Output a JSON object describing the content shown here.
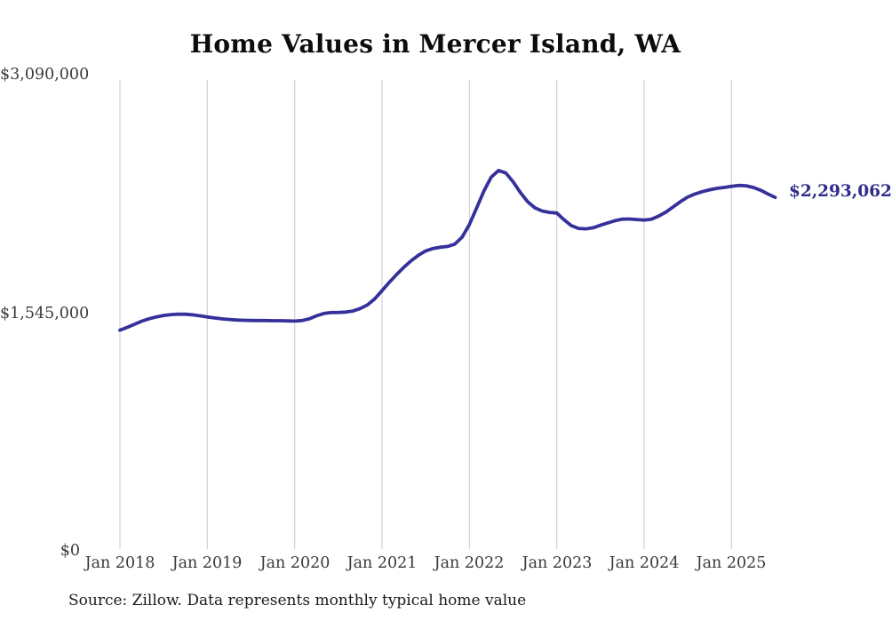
{
  "title": "Home Values in Mercer Island, WA",
  "source_note": "Source: Zillow. Data represents monthly typical home value",
  "end_label": "$2,293,062",
  "colors": {
    "line": "#35319a",
    "grid": "#c9c9c9",
    "title_text": "#0d0d0d",
    "axis_text": "#3a3a3a",
    "end_label_text": "#302c8c"
  },
  "chart_data": {
    "type": "line",
    "title": "Home Values in Mercer Island, WA",
    "series_name": "Monthly typical home value",
    "frequency": "monthly",
    "x_start": "2018-01",
    "x_end": "2025-07",
    "xlabel": "",
    "ylabel": "",
    "ylim": [
      0,
      3090000
    ],
    "grid": "vertical-only",
    "legend": "none",
    "y_tick_labels": [
      "$0",
      "$1,545,000",
      "$3,090,000"
    ],
    "y_tick_values": [
      0,
      1545000,
      3090000
    ],
    "x_tick_labels": [
      "Jan 2018",
      "Jan 2019",
      "Jan 2020",
      "Jan 2021",
      "Jan 2022",
      "Jan 2023",
      "Jan 2024",
      "Jan 2025"
    ],
    "end_value": 2293062,
    "values": [
      1432000,
      1450000,
      1470000,
      1490000,
      1506000,
      1518000,
      1527000,
      1533000,
      1536000,
      1535000,
      1531000,
      1525000,
      1518000,
      1511000,
      1505000,
      1501000,
      1498000,
      1496000,
      1495000,
      1494000,
      1494000,
      1493000,
      1493000,
      1492000,
      1491000,
      1494000,
      1505000,
      1525000,
      1540000,
      1546000,
      1547000,
      1549000,
      1556000,
      1572000,
      1596000,
      1635000,
      1688000,
      1742000,
      1793000,
      1840000,
      1882000,
      1918000,
      1946000,
      1962000,
      1970000,
      1975000,
      1990000,
      2035000,
      2117000,
      2225000,
      2335000,
      2425000,
      2468000,
      2452000,
      2395000,
      2325000,
      2265000,
      2225000,
      2205000,
      2196000,
      2192000,
      2148000,
      2110000,
      2092000,
      2089000,
      2096000,
      2112000,
      2128000,
      2142000,
      2152000,
      2153000,
      2150000,
      2146000,
      2152000,
      2172000,
      2198000,
      2232000,
      2266000,
      2296000,
      2316000,
      2331000,
      2343000,
      2352000,
      2358000,
      2365000,
      2371000,
      2369000,
      2358000,
      2340000,
      2316000,
      2293062
    ]
  }
}
